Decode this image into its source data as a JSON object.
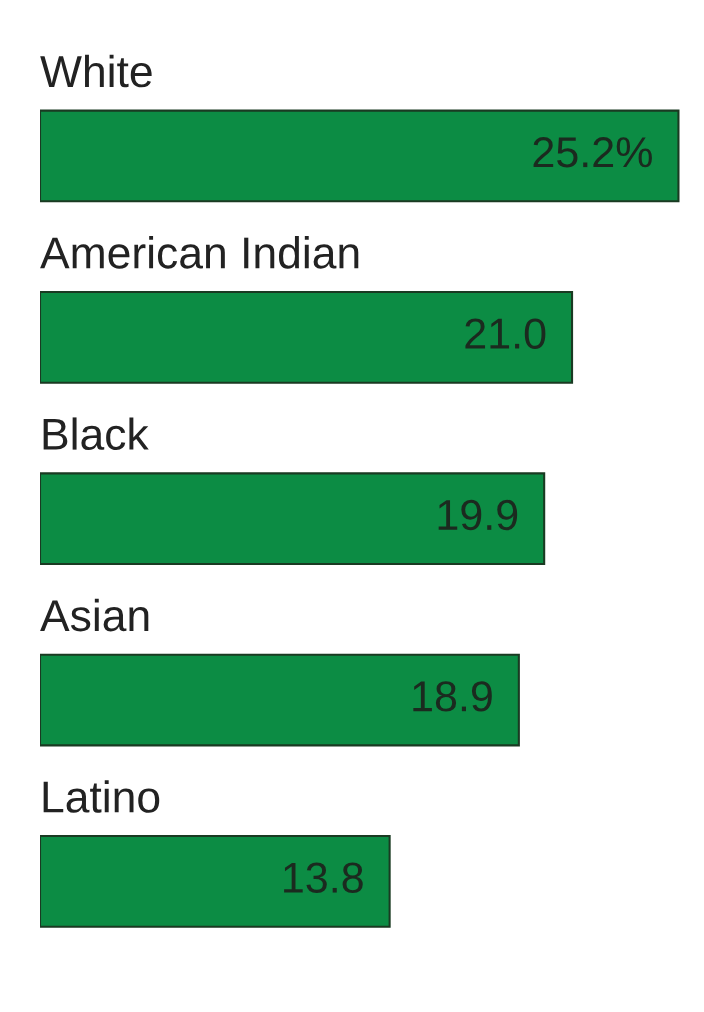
{
  "chart_data": {
    "type": "bar",
    "orientation": "horizontal",
    "categories": [
      "White",
      "American Indian",
      "Black",
      "Asian",
      "Latino"
    ],
    "values": [
      25.2,
      21.0,
      19.9,
      18.9,
      13.8
    ],
    "value_labels": [
      "25.2%",
      "21.0",
      "19.9",
      "18.9",
      "13.8"
    ],
    "color": "#0c8c44",
    "grid": false,
    "legend": false
  }
}
